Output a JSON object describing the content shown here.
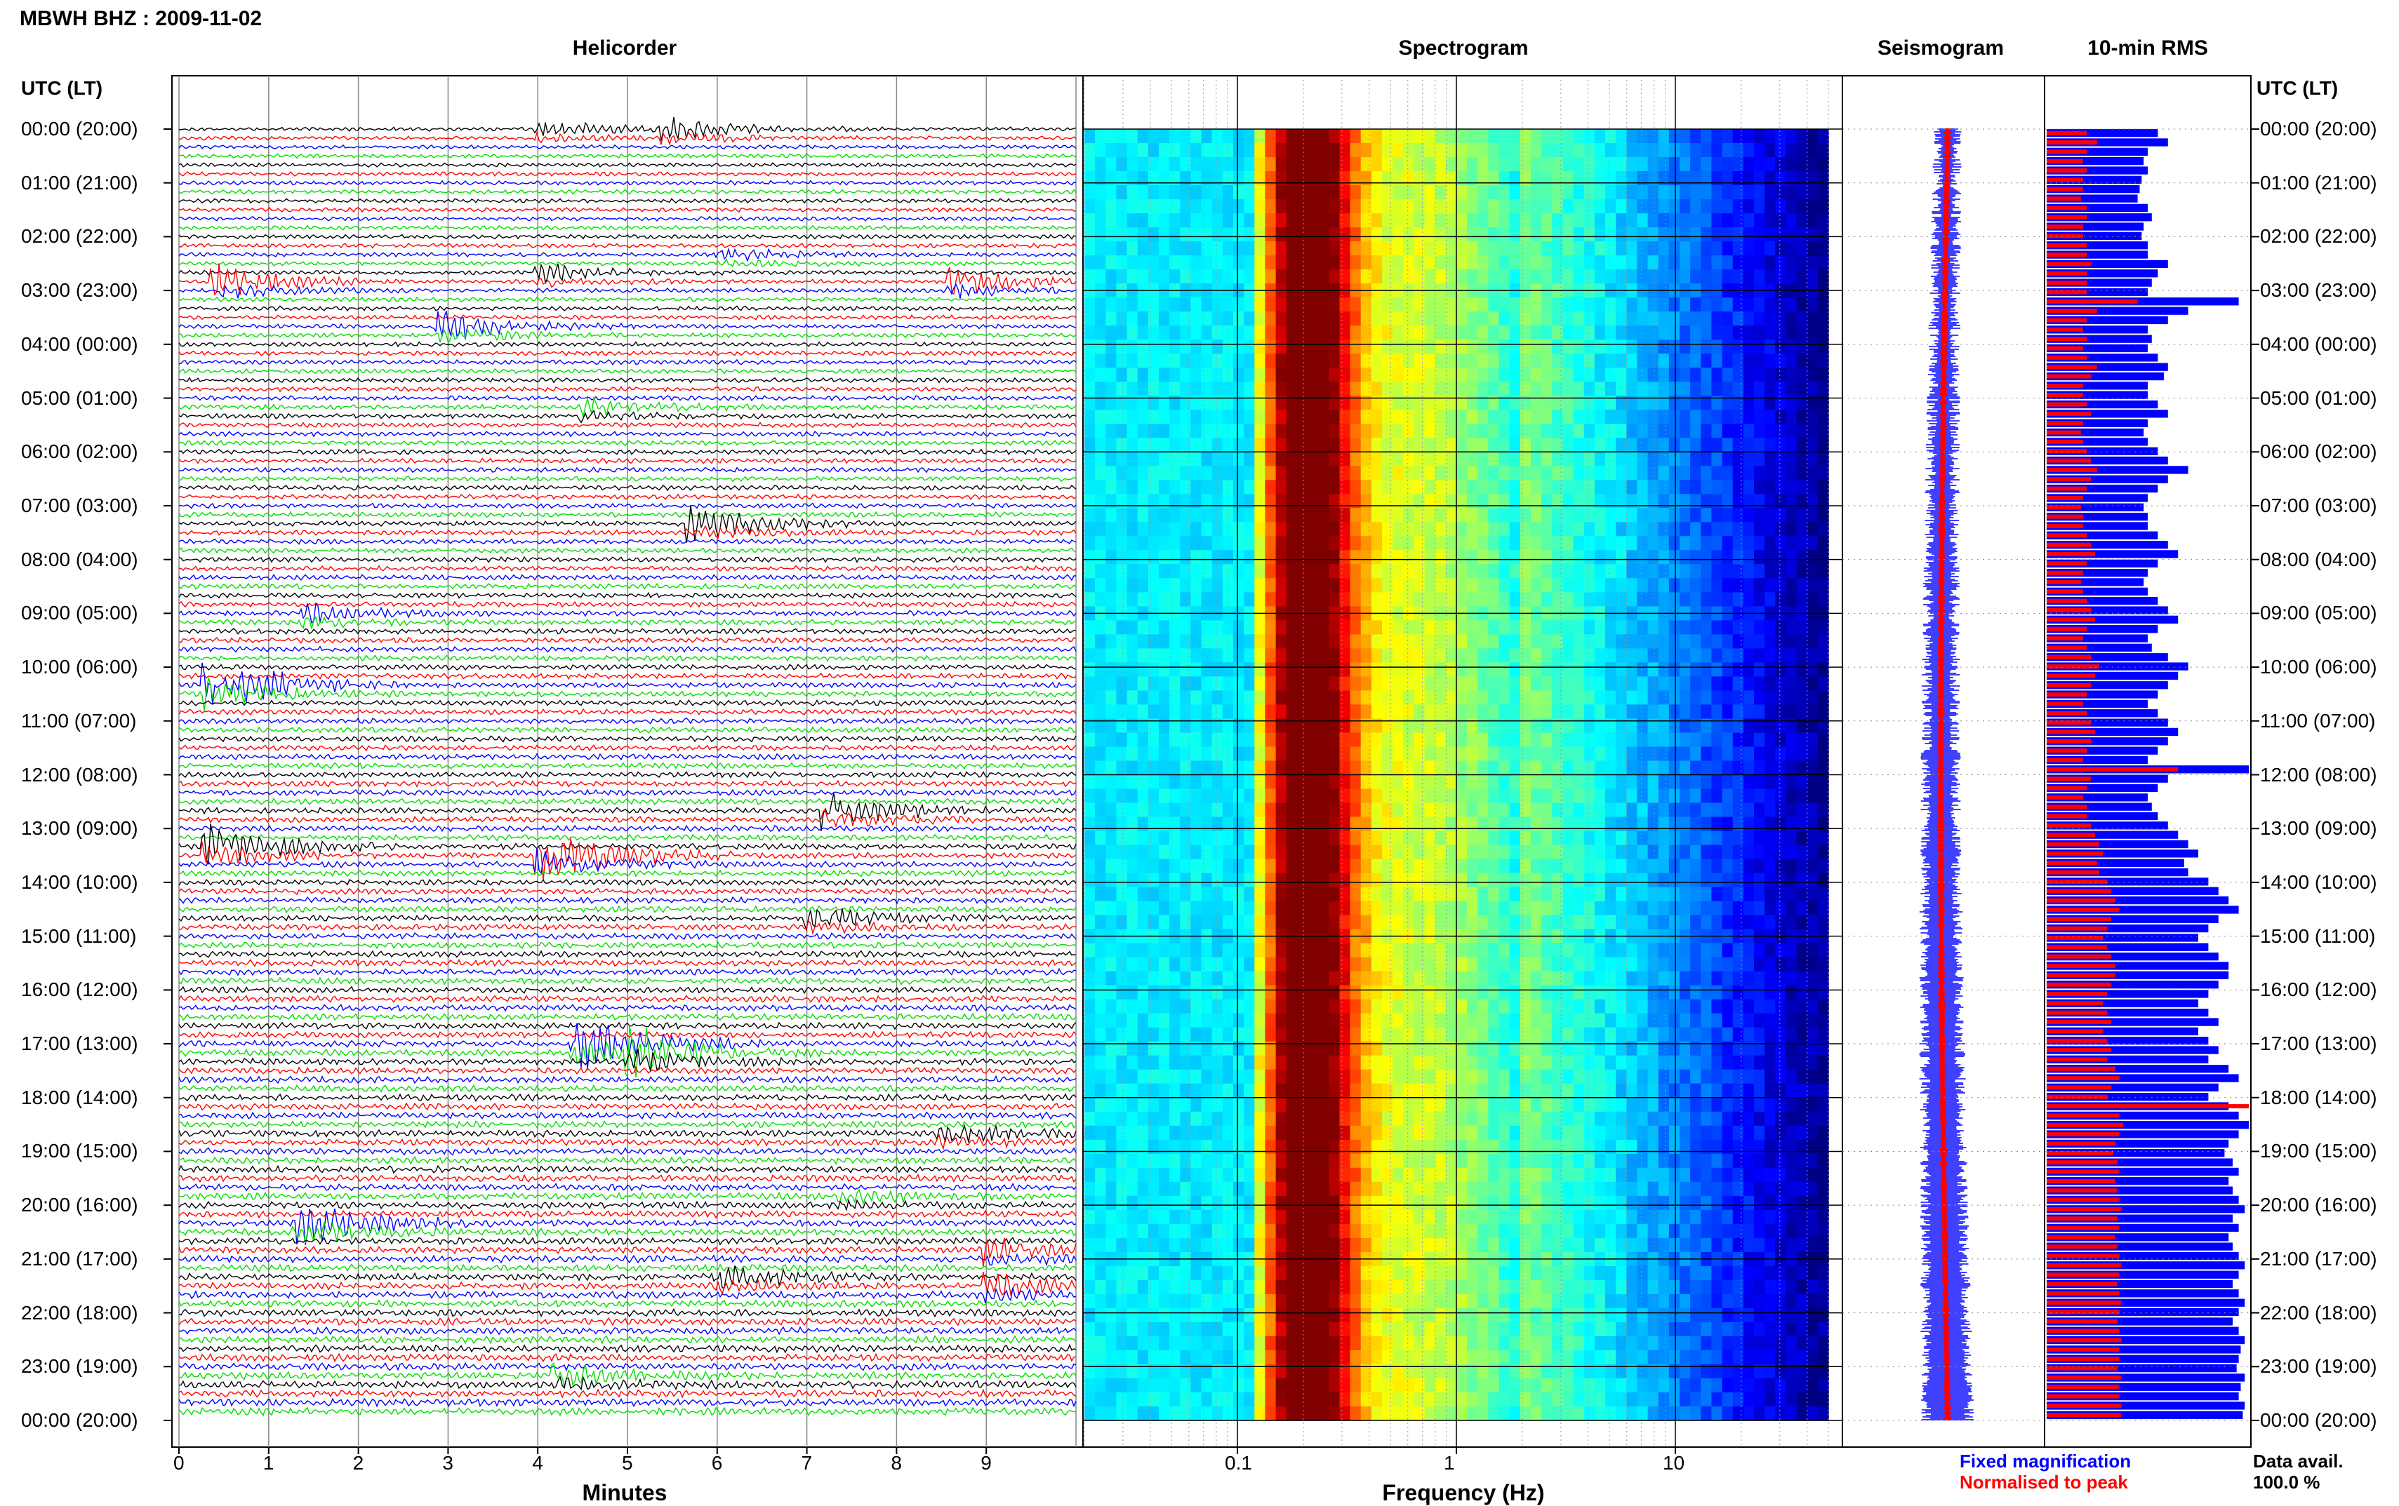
{
  "header": {
    "station": "MBWH BHZ : 2009-11-02"
  },
  "panels": {
    "helicorder": "Helicorder",
    "spectrogram": "Spectrogram",
    "seismogram": "Seismogram",
    "rms": "10-min RMS"
  },
  "axes": {
    "left_header": "UTC (LT)",
    "right_header": "UTC (LT)",
    "time_labels": [
      "00:00 (20:00)",
      "01:00 (21:00)",
      "02:00 (22:00)",
      "03:00 (23:00)",
      "04:00 (00:00)",
      "05:00 (01:00)",
      "06:00 (02:00)",
      "07:00 (03:00)",
      "08:00 (04:00)",
      "09:00 (05:00)",
      "10:00 (06:00)",
      "11:00 (07:00)",
      "12:00 (08:00)",
      "13:00 (09:00)",
      "14:00 (10:00)",
      "15:00 (11:00)",
      "16:00 (12:00)",
      "17:00 (13:00)",
      "18:00 (14:00)",
      "19:00 (15:00)",
      "20:00 (16:00)",
      "21:00 (17:00)",
      "22:00 (18:00)",
      "23:00 (19:00)",
      "00:00 (20:00)"
    ],
    "minutes_label": "Minutes",
    "minutes_ticks": [
      "0",
      "1",
      "2",
      "3",
      "4",
      "5",
      "6",
      "7",
      "8",
      "9"
    ],
    "freq_label": "Frequency (Hz)",
    "freq_ticks": [
      "0.1",
      "1",
      "10"
    ]
  },
  "legend": {
    "fixed": "Fixed magnification",
    "normalised": "Normalised to peak",
    "fixed_color": "#0000ff",
    "normalised_color": "#ff0000"
  },
  "availability": {
    "label": "Data avail.",
    "value": "100.0 %"
  },
  "colors": {
    "trace_cycle": [
      "#000000",
      "#ff0000",
      "#0000ff",
      "#00dd00"
    ]
  },
  "chart_data": {
    "type": "heatmap",
    "helicorder": {
      "x_range_minutes": [
        0,
        10
      ],
      "lines_per_hour": 6,
      "hours": 24,
      "events": [
        {
          "hour": 0.0,
          "minute": 4.0,
          "amp": 0.5
        },
        {
          "hour": 0.0,
          "minute": 5.4,
          "amp": 0.6
        },
        {
          "hour": 2.3,
          "minute": 6.0,
          "amp": 0.4
        },
        {
          "hour": 2.6,
          "minute": 4.0,
          "amp": 0.5
        },
        {
          "hour": 2.8,
          "minute": 0.4,
          "amp": 1.0
        },
        {
          "hour": 2.9,
          "minute": 8.6,
          "amp": 0.8
        },
        {
          "hour": 3.7,
          "minute": 2.9,
          "amp": 0.9
        },
        {
          "hour": 5.2,
          "minute": 4.5,
          "amp": 0.5
        },
        {
          "hour": 7.4,
          "minute": 5.7,
          "amp": 1.0
        },
        {
          "hour": 9.0,
          "minute": 1.4,
          "amp": 0.5
        },
        {
          "hour": 10.4,
          "minute": 0.3,
          "amp": 1.8
        },
        {
          "hour": 12.6,
          "minute": 7.2,
          "amp": 1.0
        },
        {
          "hour": 13.4,
          "minute": 0.3,
          "amp": 1.2
        },
        {
          "hour": 13.5,
          "minute": 4.0,
          "amp": 1.6
        },
        {
          "hour": 14.6,
          "minute": 7.0,
          "amp": 0.7
        },
        {
          "hour": 17.0,
          "minute": 4.4,
          "amp": 1.6
        },
        {
          "hour": 17.1,
          "minute": 5.0,
          "amp": 1.4
        },
        {
          "hour": 18.6,
          "minute": 8.5,
          "amp": 0.5
        },
        {
          "hour": 19.8,
          "minute": 7.3,
          "amp": 0.4
        },
        {
          "hour": 20.4,
          "minute": 1.3,
          "amp": 1.2
        },
        {
          "hour": 20.8,
          "minute": 9.0,
          "amp": 0.7
        },
        {
          "hour": 21.4,
          "minute": 6.0,
          "amp": 0.6
        },
        {
          "hour": 21.5,
          "minute": 9.0,
          "amp": 0.7
        },
        {
          "hour": 23.1,
          "minute": 4.2,
          "amp": 0.6
        }
      ]
    },
    "spectrogram": {
      "x_scale": "log",
      "x_range_hz": [
        0.02,
        50
      ],
      "color_map": "jet",
      "low_freq_band_hz": [
        0.02,
        0.12
      ],
      "microseism_peak_hz": 0.2
    },
    "rms": {
      "bins_per_hour": 6,
      "fixed_values": [
        0.55,
        0.6,
        0.5,
        0.48,
        0.5,
        0.47,
        0.46,
        0.45,
        0.5,
        0.52,
        0.48,
        0.47,
        0.5,
        0.5,
        0.6,
        0.55,
        0.52,
        0.5,
        0.95,
        0.7,
        0.6,
        0.5,
        0.52,
        0.5,
        0.55,
        0.6,
        0.58,
        0.5,
        0.5,
        0.55,
        0.6,
        0.5,
        0.48,
        0.5,
        0.55,
        0.6,
        0.7,
        0.6,
        0.55,
        0.5,
        0.48,
        0.5,
        0.5,
        0.55,
        0.6,
        0.65,
        0.55,
        0.5,
        0.48,
        0.5,
        0.55,
        0.6,
        0.65,
        0.55,
        0.5,
        0.52,
        0.6,
        0.7,
        0.65,
        0.6,
        0.55,
        0.5,
        0.55,
        0.6,
        0.65,
        0.6,
        0.55,
        0.5,
        1.0,
        0.6,
        0.55,
        0.5,
        0.52,
        0.55,
        0.6,
        0.65,
        0.7,
        0.75,
        0.68,
        0.7,
        0.8,
        0.85,
        0.9,
        0.95,
        0.85,
        0.8,
        0.75,
        0.8,
        0.85,
        0.9,
        0.9,
        0.85,
        0.8,
        0.75,
        0.8,
        0.85,
        0.75,
        0.8,
        0.85,
        0.8,
        0.9,
        0.95,
        0.85,
        0.8,
        0.9,
        0.95,
        1.0,
        0.95,
        0.9,
        0.88,
        0.92,
        0.95,
        0.9,
        0.92,
        0.95,
        0.98,
        0.92,
        0.95,
        0.9,
        0.92,
        0.95,
        0.98,
        0.95,
        0.92,
        0.95,
        0.98,
        0.95,
        0.92,
        0.95,
        0.98,
        0.96,
        0.95,
        0.94,
        0.98,
        0.96,
        0.95,
        0.98,
        0.97
      ],
      "normalised_values": [
        0.2,
        0.25,
        0.2,
        0.18,
        0.2,
        0.18,
        0.18,
        0.17,
        0.2,
        0.2,
        0.18,
        0.18,
        0.2,
        0.2,
        0.22,
        0.2,
        0.2,
        0.2,
        0.45,
        0.25,
        0.2,
        0.18,
        0.2,
        0.18,
        0.2,
        0.25,
        0.22,
        0.18,
        0.18,
        0.2,
        0.22,
        0.18,
        0.17,
        0.18,
        0.2,
        0.22,
        0.25,
        0.22,
        0.2,
        0.18,
        0.17,
        0.18,
        0.18,
        0.2,
        0.22,
        0.24,
        0.2,
        0.18,
        0.17,
        0.18,
        0.2,
        0.22,
        0.24,
        0.2,
        0.18,
        0.2,
        0.22,
        0.26,
        0.24,
        0.22,
        0.2,
        0.18,
        0.2,
        0.22,
        0.24,
        0.22,
        0.2,
        0.18,
        0.65,
        0.22,
        0.2,
        0.18,
        0.2,
        0.2,
        0.22,
        0.24,
        0.26,
        0.28,
        0.25,
        0.26,
        0.3,
        0.32,
        0.34,
        0.36,
        0.32,
        0.3,
        0.28,
        0.3,
        0.32,
        0.34,
        0.34,
        0.32,
        0.3,
        0.28,
        0.3,
        0.32,
        0.28,
        0.3,
        0.32,
        0.3,
        0.34,
        0.36,
        0.32,
        0.3,
        1.0,
        0.36,
        0.38,
        0.36,
        0.34,
        0.33,
        0.35,
        0.36,
        0.34,
        0.35,
        0.36,
        0.37,
        0.35,
        0.36,
        0.34,
        0.35,
        0.36,
        0.37,
        0.36,
        0.35,
        0.36,
        0.37,
        0.36,
        0.35,
        0.36,
        0.37,
        0.36,
        0.36,
        0.35,
        0.37,
        0.36,
        0.36,
        0.37,
        0.37
      ]
    }
  }
}
